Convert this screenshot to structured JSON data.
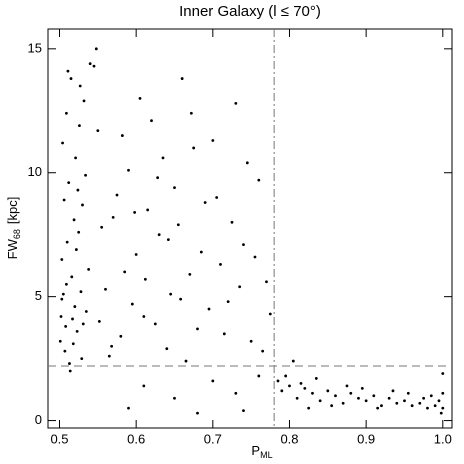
{
  "chart_data": {
    "type": "scatter",
    "title": "Inner Galaxy  (l ≤ 70°)",
    "xlabel": "P",
    "xlabel_sub": "ML",
    "ylabel": "FW",
    "ylabel_sub": "68",
    "ylabel_unit": "[kpc]",
    "xlim": [
      0.485,
      1.012
    ],
    "ylim": [
      -0.3,
      15.8
    ],
    "xticks": [
      0.5,
      0.6,
      0.7,
      0.8,
      0.9,
      {
        "value": 1,
        "label": "1.0"
      }
    ],
    "yticks": [
      0,
      5,
      10,
      15
    ],
    "vlines": [
      0.78
    ],
    "hlines": [
      2.2
    ],
    "color": "#000000",
    "series": [
      {
        "x": [
          0.502,
          0.505,
          0.508,
          0.503,
          0.51,
          0.506,
          0.512,
          0.504,
          0.509,
          0.515,
          0.511,
          0.507,
          0.513,
          0.518,
          0.52,
          0.516,
          0.522,
          0.519,
          0.524,
          0.521,
          0.526,
          0.514,
          0.501,
          0.503,
          0.509,
          0.517,
          0.523,
          0.528,
          0.525,
          0.53,
          0.532,
          0.527,
          0.529,
          0.531,
          0.535,
          0.538,
          0.534,
          0.54,
          0.548,
          0.545,
          0.55,
          0.56,
          0.57,
          0.58,
          0.59,
          0.6,
          0.61,
          0.62,
          0.63,
          0.64,
          0.65,
          0.66,
          0.67,
          0.68,
          0.69,
          0.7,
          0.71,
          0.72,
          0.73,
          0.74,
          0.75,
          0.76,
          0.77,
          0.775,
          0.555,
          0.565,
          0.575,
          0.585,
          0.595,
          0.605,
          0.615,
          0.625,
          0.635,
          0.645,
          0.655,
          0.665,
          0.675,
          0.685,
          0.695,
          0.705,
          0.715,
          0.725,
          0.735,
          0.745,
          0.755,
          0.765,
          0.552,
          0.568,
          0.582,
          0.598,
          0.612,
          0.628,
          0.642,
          0.658,
          0.672,
          0.61,
          0.65,
          0.7,
          0.73,
          0.76,
          0.59,
          0.68,
          0.74,
          0.785,
          0.79,
          0.8,
          0.81,
          0.82,
          0.83,
          0.84,
          0.85,
          0.86,
          0.87,
          0.88,
          0.89,
          0.9,
          0.91,
          0.92,
          0.93,
          0.94,
          0.95,
          0.96,
          0.97,
          0.98,
          0.99,
          0.995,
          1.0,
          1.0,
          1.0,
          0.998,
          0.795,
          0.815,
          0.835,
          0.855,
          0.875,
          0.895,
          0.915,
          0.935,
          0.955,
          0.975,
          0.985,
          0.805,
          0.825
        ],
        "y": [
          4.2,
          5.1,
          3.8,
          6.5,
          7.2,
          8.9,
          9.6,
          11.2,
          12.4,
          13.8,
          14.1,
          2.8,
          2.3,
          3.1,
          4.6,
          5.8,
          6.9,
          8.1,
          9.3,
          10.6,
          11.9,
          2.0,
          3.2,
          4.9,
          5.5,
          4.1,
          3.6,
          5.2,
          7.6,
          8.7,
          12.9,
          13.5,
          2.5,
          3.9,
          4.4,
          6.1,
          9.9,
          14.4,
          15.0,
          14.3,
          11.7,
          5.3,
          8.2,
          3.4,
          10.1,
          6.7,
          4.2,
          12.1,
          7.5,
          2.9,
          9.4,
          13.8,
          5.9,
          3.7,
          8.8,
          11.3,
          6.3,
          4.8,
          12.8,
          7.1,
          3.2,
          9.7,
          5.6,
          4.3,
          7.8,
          2.6,
          9.1,
          6.0,
          4.7,
          13.0,
          8.5,
          3.9,
          10.6,
          5.1,
          7.9,
          2.4,
          11.0,
          6.8,
          4.5,
          9.0,
          3.5,
          8.0,
          5.4,
          10.4,
          6.6,
          2.8,
          4.0,
          3.0,
          11.5,
          8.4,
          5.7,
          9.8,
          7.3,
          4.9,
          12.4,
          1.4,
          0.9,
          1.6,
          1.1,
          1.8,
          0.5,
          0.3,
          0.4,
          1.6,
          1.2,
          1.4,
          0.9,
          1.3,
          1.1,
          0.8,
          1.2,
          1.0,
          0.7,
          1.1,
          0.9,
          0.8,
          1.0,
          0.6,
          0.9,
          0.7,
          0.8,
          0.6,
          0.7,
          0.5,
          0.6,
          0.8,
          0.5,
          1.1,
          1.9,
          0.3,
          1.8,
          1.5,
          1.7,
          0.6,
          1.4,
          1.3,
          0.5,
          1.2,
          1.1,
          0.9,
          1.0,
          2.4,
          0.5
        ]
      }
    ]
  }
}
